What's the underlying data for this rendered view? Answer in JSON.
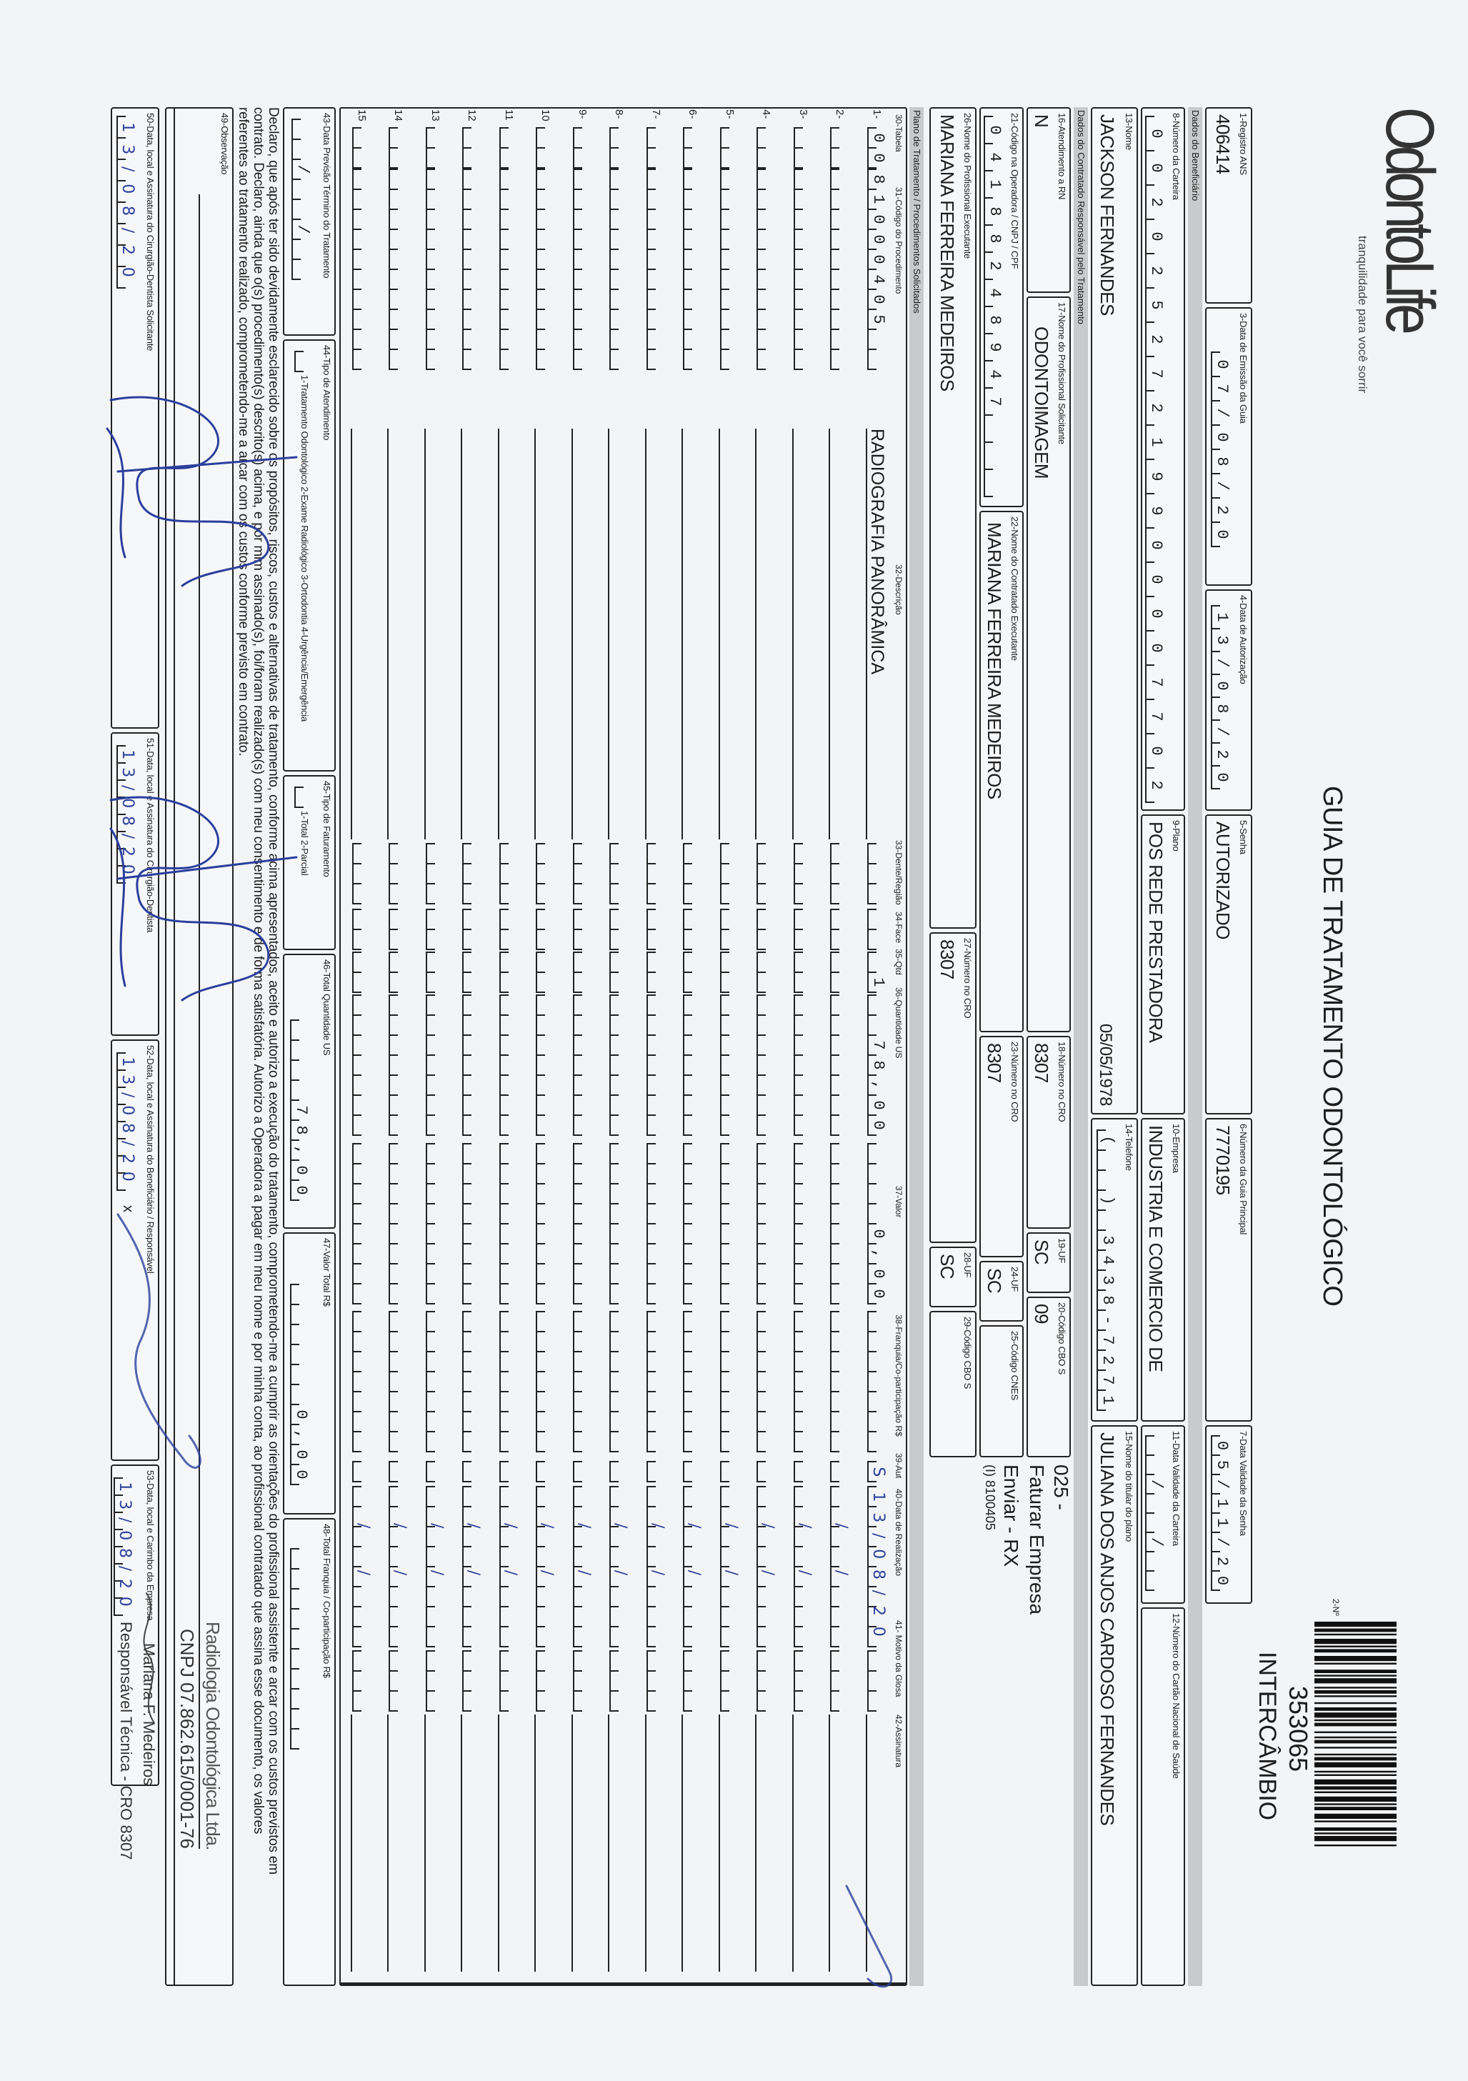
{
  "header": {
    "logo": "OdontoLife",
    "tagline": "tranquilidade para você sorrir",
    "title": "GUIA DE TRATAMENTO ODONTOLÓGICO",
    "guide_number_label": "2-Nº",
    "guide_number": "353065",
    "guide_type": "INTERCÂMBIO"
  },
  "sections": {
    "beneficiario": "Dados do Beneficiário",
    "contratado": "Dados do Contratado Responsável pelo Tratamento",
    "plano": "Plano de Tratamento / Procedimentos Solicitados"
  },
  "fields": {
    "f1": {
      "label": "1-Registro ANS",
      "value": "406414"
    },
    "f3": {
      "label": "3-Data de Emissão da Guia",
      "value": "07/08/20"
    },
    "f4": {
      "label": "4-Data de Autorização",
      "value": "13/08/20"
    },
    "f5": {
      "label": "5-Senha",
      "value": "AUTORIZADO"
    },
    "f6": {
      "label": "6-Número da Guia Principal",
      "value": "7770195"
    },
    "f7": {
      "label": "7-Data Validade da Senha",
      "value": "05/11/20"
    },
    "f8": {
      "label": "8-Número da Carteira",
      "value": "00202527219900007702"
    },
    "f9": {
      "label": "9-Plano",
      "value": "POS REDE PRESTADORA"
    },
    "f10": {
      "label": "10-Empresa",
      "value": "INDUSTRIA E COMERCIO DE"
    },
    "f11": {
      "label": "11-Data Validade da Carteira",
      "value": "  /  /  "
    },
    "f12": {
      "label": "12-Número do Cartão Nacional de Saúde",
      "value": ""
    },
    "f13": {
      "label": "13-Nome",
      "value": "JACKSON FERNANDES",
      "birth_date": "05/05/1978"
    },
    "f14": {
      "label": "14-Telefone",
      "value": "(  ) 3438-7271"
    },
    "f15": {
      "label": "15-Nome do titular do plano",
      "value": "JULIANA DOS ANJOS CARDOSO FERNANDES"
    },
    "f16": {
      "label": "16-Atendimento a RN",
      "value": "N"
    },
    "f17": {
      "label": "17-Nome do Profissional Solicitante",
      "value": "ODONTOIMAGEM"
    },
    "f18": {
      "label": "18-Número no CRO",
      "value": "8307"
    },
    "f19": {
      "label": "19-UF",
      "value": "SC"
    },
    "f20": {
      "label": "20-Código CBO S",
      "value": "09"
    },
    "f21": {
      "label": "21-Código na Operadora / CNPJ / CPF",
      "value": "04188248947   "
    },
    "f22": {
      "label": "22-Nome do Contratado Executante",
      "value": "MARIANA FERREIRA MEDEIROS"
    },
    "f23": {
      "label": "23-Número no CRO",
      "value": "8307"
    },
    "f24": {
      "label": "24-UF",
      "value": "SC"
    },
    "f25": {
      "label": "25-Código CNES",
      "value": ""
    },
    "f26": {
      "label": "26-Nome do Profissional Executante",
      "value": "MARIANA FERREIRA MEDEIROS"
    },
    "f27": {
      "label": "27-Número no CRO",
      "value": "8307"
    },
    "f28": {
      "label": "28-UF",
      "value": "SC"
    },
    "f29": {
      "label": "29-Código CBO S",
      "value": ""
    },
    "f43": {
      "label": "43-Data Previsão Término do Tratamento",
      "value": "  /  /  "
    },
    "f44": {
      "label": "44-Tipo de Atendimento",
      "value": " ",
      "options": "1-Tratamento Odontológico  2-Exame Radiológico  3-Ortodontia  4-Urgência/Emergência"
    },
    "f45": {
      "label": "45-Tipo de Faturamento",
      "value": " ",
      "options": "1-Total  2-Parcial"
    },
    "f46": {
      "label": "46-Total Quantidade US",
      "value": "78,00"
    },
    "f47": {
      "label": "47-Valor Total R$",
      "value": "0,00"
    },
    "f48": {
      "label": "48-Total Franquia / Co-participação R$",
      "value": ""
    },
    "f49": {
      "label": "49-Observação"
    },
    "f50": {
      "label": "50-Data, local e Assinatura do Cirurgião-Dentista Solicitante",
      "value": "13/08/20"
    },
    "f51": {
      "label": "51-Data, local e Assinatura do Cirurgião-Dentista",
      "value": "13/08/20"
    },
    "f52": {
      "label": "52-Data, local e Assinatura do Beneficiário / Responsável",
      "value": "13/08/20",
      "mark": "x"
    },
    "f53": {
      "label": "53-Data, local e Carimbo da Empresa",
      "value": "13/08/20"
    }
  },
  "side_notes": {
    "line1": "025 -",
    "line2": "Faturar Empresa",
    "line3": "Enviar - RX",
    "line4": "(I) 8100405"
  },
  "table": {
    "headers": {
      "tabela": "30-Tabela",
      "codigo": "31-Código do Procedimento",
      "descricao": "32-Descrição",
      "dente": "33-Dente/Região",
      "face": "34-Face",
      "qtd": "35-Qtd",
      "qtd_us": "36-Quantidade US",
      "valor": "37-Valor",
      "franquia": "38-Franquia/Co-participação R$",
      "aut": "39-Aut",
      "data": "40-Data de Realização",
      "glosa": "41- Motivo da Glosa",
      "assinatura": "42-Assinatura"
    },
    "rows": [
      {
        "num": "1-",
        "tabela": "00",
        "codigo": "81000405",
        "descricao": "RADIOGRAFIA PANORÂMICA",
        "dente": "",
        "face": "",
        "qtd": "1",
        "qtd_us": "78,00",
        "valor": "0,00",
        "franquia": "",
        "aut": "S",
        "data": "13/08/20",
        "glosa": ""
      },
      {
        "num": "2-"
      },
      {
        "num": "3-"
      },
      {
        "num": "4-"
      },
      {
        "num": "5-"
      },
      {
        "num": "6-"
      },
      {
        "num": "7-"
      },
      {
        "num": "8-"
      },
      {
        "num": "9-"
      },
      {
        "num": "10"
      },
      {
        "num": "11"
      },
      {
        "num": "12"
      },
      {
        "num": "13"
      },
      {
        "num": "14"
      },
      {
        "num": "15"
      }
    ]
  },
  "declaration": [
    "Declaro, que após ter sido devidamente esclarecido sobre os propósitos, riscos, custos e alternativas de tratamento, conforme acima apresentados, aceito e autorizo a execução do tratamento, comprometendo-me a cumprir as orientações do profissional assistente e arcar com os custos previstos em",
    "contrato. Declaro, ainda que o(s) procedimento(s) descrito(s) acima, e por mim assinado(s), foi/foram realizado(s) com meu consentimento e de forma satisfatória. Autorizo a Operadora a pagar em meu nome e por minha conta, ao profissional contratado que assina esse documento, os valores",
    "referentes ao tratamento realizado, comprometendo-me a arcar com os custos conforme previsto em contrato."
  ],
  "stamps": {
    "company": "Radiologia Odontológica Ltda.",
    "cnpj": "CNPJ 07.862.615/0001-76",
    "professional": "Mariana F. Medeiros",
    "role": "Responsável Técnica - CRO 8307"
  },
  "colors": {
    "ink": "#1d1d1d",
    "band": "#c9cacb",
    "pen": "#2b3f9e",
    "paper": "#f3f4f5"
  }
}
